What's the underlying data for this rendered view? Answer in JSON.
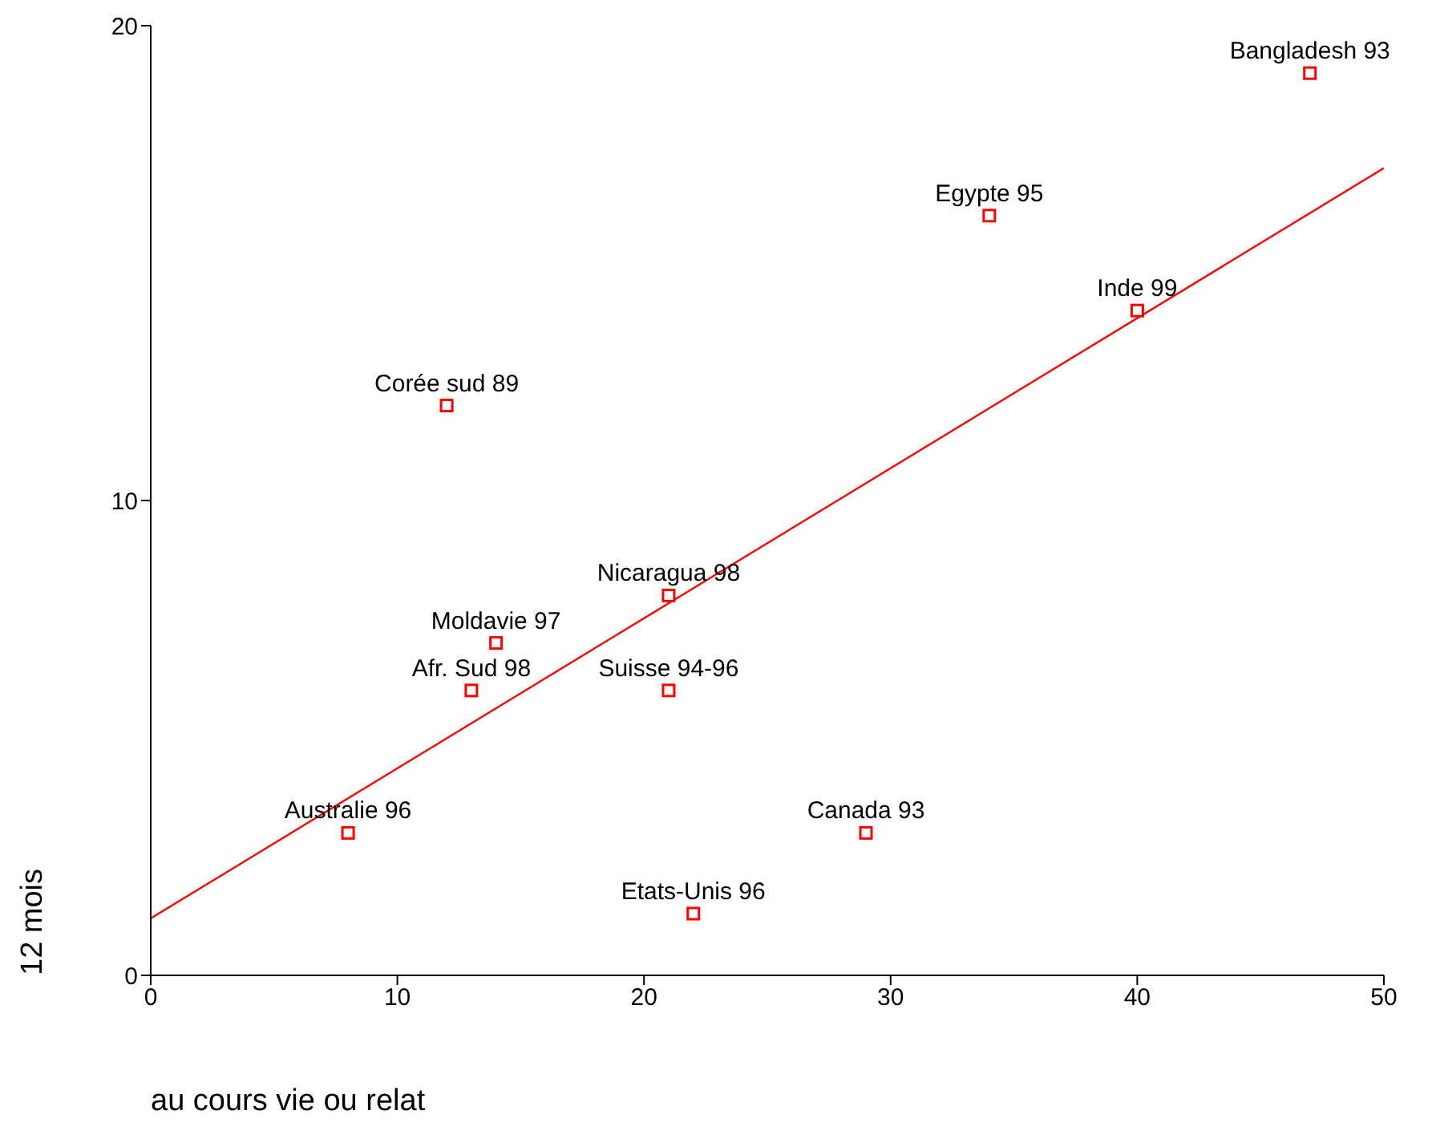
{
  "chart_data": {
    "type": "scatter",
    "xlabel": "au cours vie ou relat",
    "ylabel": "12 mois",
    "xlim": [
      0,
      50
    ],
    "ylim": [
      0,
      20
    ],
    "xticks": [
      0,
      10,
      20,
      30,
      40,
      50
    ],
    "yticks": [
      0,
      10,
      20
    ],
    "grid": false,
    "series": [
      {
        "marker": "square",
        "color": "#ff0000",
        "x": [
          47,
          34,
          40,
          12,
          21,
          14,
          13,
          21,
          8,
          29,
          22
        ],
        "values": [
          19,
          16,
          14,
          12,
          8,
          7,
          6,
          6,
          3,
          3,
          1.3
        ]
      },
      {
        "type": "line",
        "marker": "none",
        "color": "#ff0000",
        "x": [
          0,
          50
        ],
        "values": [
          1.2,
          17
        ]
      }
    ],
    "annotations": [
      {
        "text": "Bangladesh 93",
        "x": 47,
        "y": 19
      },
      {
        "text": "Egypte 95",
        "x": 34,
        "y": 16
      },
      {
        "text": "Inde 99",
        "x": 40,
        "y": 14
      },
      {
        "text": "Corée sud 89",
        "x": 12,
        "y": 12
      },
      {
        "text": "Nicaragua 98",
        "x": 21,
        "y": 8
      },
      {
        "text": "Moldavie 97",
        "x": 14,
        "y": 7
      },
      {
        "text": "Afr. Sud 98",
        "x": 13,
        "y": 6
      },
      {
        "text": "Suisse 94-96",
        "x": 21,
        "y": 6
      },
      {
        "text": "Australie 96",
        "x": 8,
        "y": 3
      },
      {
        "text": "Canada 93",
        "x": 29,
        "y": 3
      },
      {
        "text": "Etats-Unis 96",
        "x": 22,
        "y": 1.3
      }
    ]
  }
}
